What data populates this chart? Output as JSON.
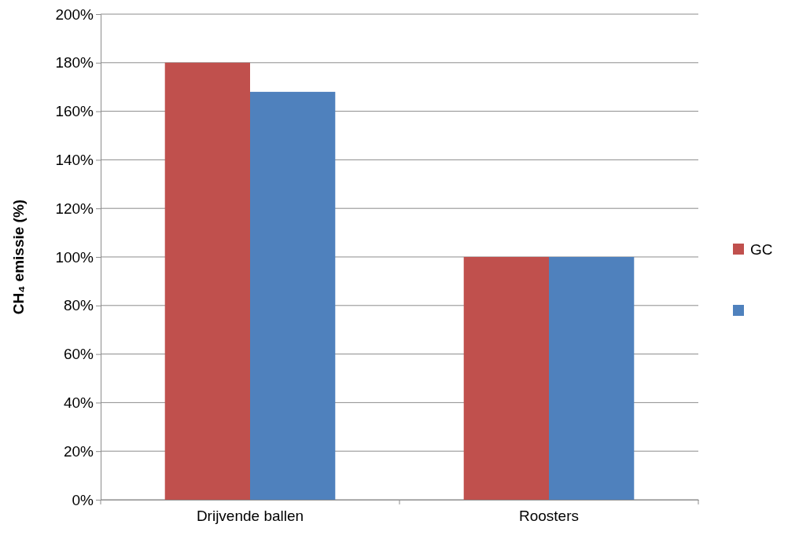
{
  "chart_data": {
    "type": "bar",
    "ylabel": "CH₄ emissie (%)",
    "categories": [
      "Drijvende ballen",
      "Roosters"
    ],
    "series": [
      {
        "name": "GC",
        "color": "#c0504d",
        "values": [
          180,
          100
        ]
      },
      {
        "color": "#4f81bd",
        "values": [
          168,
          100
        ]
      }
    ],
    "ylim": [
      0,
      200
    ],
    "yticks": [
      {
        "value": 0,
        "label": "0%"
      },
      {
        "value": 20,
        "label": "20%"
      },
      {
        "value": 40,
        "label": "40%"
      },
      {
        "value": 60,
        "label": "60%"
      },
      {
        "value": 80,
        "label": "80%"
      },
      {
        "value": 100,
        "label": "100%"
      },
      {
        "value": 120,
        "label": "120%"
      },
      {
        "value": 140,
        "label": "140%"
      },
      {
        "value": 160,
        "label": "160%"
      },
      {
        "value": 180,
        "label": "180%"
      },
      {
        "value": 200,
        "label": "200%"
      }
    ],
    "grid": "y",
    "legend": "right"
  }
}
